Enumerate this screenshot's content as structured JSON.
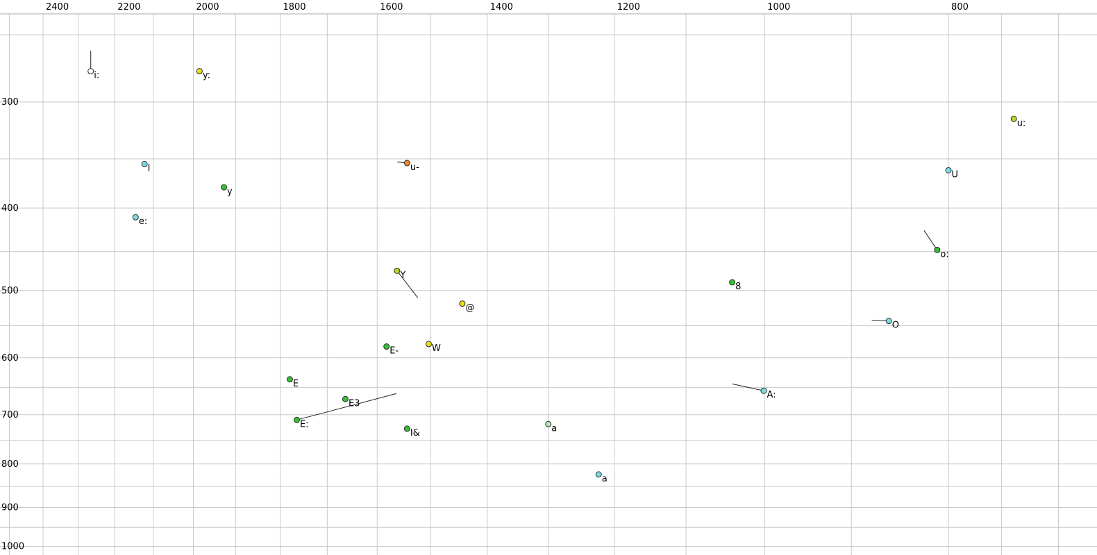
{
  "figure": {
    "background": "#ffffff",
    "grid_color": "#c9c9c9",
    "axis_line_color": "#aaaaaa",
    "marker_outline": "#2a2a2a",
    "arrow_color": "#222222"
  },
  "palette": {
    "white": "#ffffff",
    "yellow": "#e8df1c",
    "yellowgreen": "#b9d62a",
    "green": "#35c135",
    "cyan": "#7fd9e8",
    "orange": "#f08a24",
    "palegreen": "#b5e3b5"
  },
  "grid": {
    "x_lines_hz": [
      2500,
      2400,
      2300,
      2200,
      2100,
      2000,
      1900,
      1800,
      1700,
      1600,
      1500,
      1400,
      1300,
      1200,
      1100,
      1000,
      900,
      800,
      750,
      700
    ],
    "y_lines_hz": [
      250,
      300,
      350,
      400,
      450,
      500,
      550,
      600,
      650,
      700,
      750,
      800,
      850,
      900,
      950,
      1000
    ]
  },
  "chart_data": {
    "type": "scatter",
    "title": "",
    "xlabel": "",
    "ylabel": "",
    "x_axis": {
      "ticks": [
        2400,
        2200,
        2000,
        1800,
        1600,
        1400,
        1200,
        1000,
        800
      ],
      "scale": "log",
      "range": [
        2500,
        700
      ],
      "reversed": true,
      "position": "top"
    },
    "y_axis": {
      "ticks": [
        300,
        400,
        500,
        600,
        700,
        800,
        900,
        1000
      ],
      "scale": "log",
      "range": [
        250,
        1000
      ],
      "increases_downward": true,
      "position": "left"
    },
    "points": [
      {
        "label": "i:",
        "f2": 2265,
        "f1": 276,
        "color": "white",
        "arrow": {
          "f2": 2265,
          "f1": 261
        }
      },
      {
        "label": "y:",
        "f2": 1985,
        "f1": 276,
        "color": "yellow"
      },
      {
        "label": "u:",
        "f2": 739,
        "f1": 314,
        "color": "yellowgreen"
      },
      {
        "label": "I",
        "f2": 2122,
        "f1": 355,
        "color": "cyan"
      },
      {
        "label": "u-",
        "f2": 1543,
        "f1": 354,
        "color": "orange",
        "arrow": {
          "f2": 1562,
          "f1": 353
        }
      },
      {
        "label": "U",
        "f2": 800,
        "f1": 361,
        "color": "cyan"
      },
      {
        "label": "y",
        "f2": 1927,
        "f1": 378,
        "color": "green"
      },
      {
        "label": "e:",
        "f2": 2145,
        "f1": 410,
        "color": "cyan"
      },
      {
        "label": "o:",
        "f2": 811,
        "f1": 448,
        "color": "green",
        "arrow": {
          "f2": 824,
          "f1": 425
        }
      },
      {
        "label": "Y",
        "f2": 1562,
        "f1": 474,
        "color": "yellowgreen",
        "arrow": {
          "f2": 1523,
          "f1": 510
        }
      },
      {
        "label": "8",
        "f2": 1040,
        "f1": 489,
        "color": "green"
      },
      {
        "label": "@",
        "f2": 1443,
        "f1": 518,
        "color": "yellow"
      },
      {
        "label": "O",
        "f2": 860,
        "f1": 543,
        "color": "cyan",
        "arrow": {
          "f2": 878,
          "f1": 542
        }
      },
      {
        "label": "E-",
        "f2": 1582,
        "f1": 582,
        "color": "green"
      },
      {
        "label": "W",
        "f2": 1503,
        "f1": 578,
        "color": "yellow"
      },
      {
        "label": "E",
        "f2": 1779,
        "f1": 636,
        "color": "green"
      },
      {
        "label": "E3",
        "f2": 1663,
        "f1": 671,
        "color": "green"
      },
      {
        "label": "E:",
        "f2": 1764,
        "f1": 710,
        "color": "green",
        "arrow": {
          "f2": 1563,
          "f1": 661
        }
      },
      {
        "label": "I&",
        "f2": 1543,
        "f1": 727,
        "color": "green"
      },
      {
        "label": "a",
        "f2": 1300,
        "f1": 718,
        "color": "palegreen",
        "label_color": "#8a8a8a"
      },
      {
        "label": "a",
        "f2": 1223,
        "f1": 823,
        "color": "cyan"
      },
      {
        "label": "A:",
        "f2": 1001,
        "f1": 656,
        "color": "cyan",
        "arrow": {
          "f2": 1040,
          "f1": 644
        }
      }
    ]
  }
}
